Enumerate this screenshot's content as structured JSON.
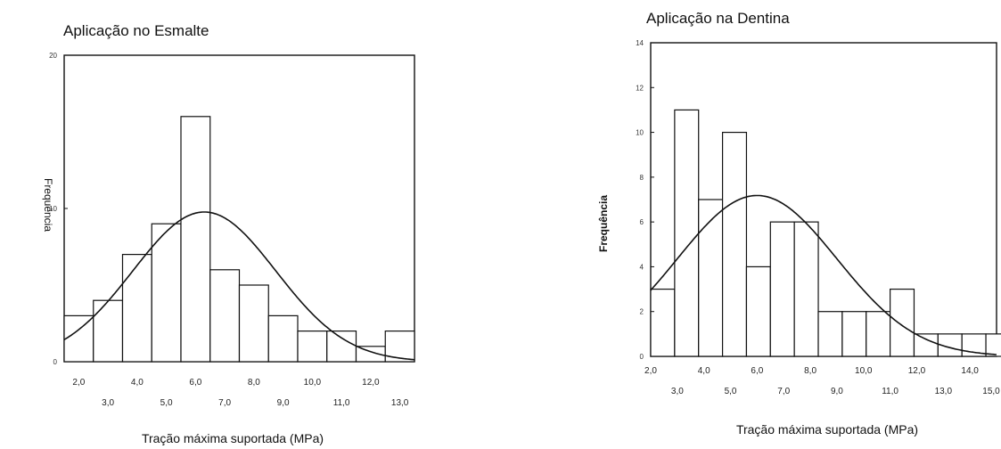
{
  "chart_data": [
    {
      "type": "bar",
      "subtype": "histogram-with-normal-curve",
      "title": "Aplicação no Esmalte",
      "xlabel": "Tração máxima suportada (MPa)",
      "ylabel": "Frequência",
      "x_ticks_top": [
        "2,0",
        "4,0",
        "6,0",
        "8,0",
        "10,0",
        "12,0"
      ],
      "x_ticks_bottom": [
        "3,0",
        "5,0",
        "7,0",
        "9,0",
        "11,0",
        "13,0"
      ],
      "y_ticks": [
        "0",
        "10",
        "20"
      ],
      "xlim": [
        1.5,
        13.5
      ],
      "ylim": [
        0,
        20
      ],
      "bin_width": 1.0,
      "bin_starts": [
        1.5,
        2.5,
        3.5,
        4.5,
        5.5,
        6.5,
        7.5,
        8.5,
        9.5,
        10.5,
        11.5,
        12.5
      ],
      "values": [
        3,
        4,
        7,
        9,
        16,
        6,
        5,
        3,
        2,
        2,
        1,
        2
      ],
      "normal_curve": {
        "mean": 6.3,
        "sd": 2.45,
        "n": 60
      },
      "grid": false,
      "legend": "none"
    },
    {
      "type": "bar",
      "subtype": "histogram-with-normal-curve",
      "title": "Aplicação na Dentina",
      "xlabel": "Tração máxima suportada (MPa)",
      "ylabel": "Frequência",
      "x_ticks_top": [
        "2,0",
        "4,0",
        "6,0",
        "8,0",
        "10,0",
        "12,0",
        "14,0"
      ],
      "x_ticks_bottom": [
        "3,0",
        "5,0",
        "7,0",
        "9,0",
        "11,0",
        "13,0",
        "15,0"
      ],
      "y_ticks": [
        "0",
        "2",
        "4",
        "6",
        "8",
        "10",
        "12",
        "14"
      ],
      "xlim": [
        2.0,
        15.0
      ],
      "ylim": [
        0,
        14
      ],
      "bin_width": 0.9,
      "bin_starts": [
        2.0,
        2.9,
        3.8,
        4.7,
        5.6,
        6.5,
        7.4,
        8.3,
        9.2,
        10.1,
        11.0,
        11.9,
        12.8,
        13.7,
        14.6
      ],
      "values": [
        3,
        11,
        7,
        10,
        4,
        6,
        6,
        2,
        2,
        2,
        3,
        1,
        1,
        1,
        1
      ],
      "normal_curve": {
        "mean": 6.0,
        "sd": 3.0,
        "n": 60
      },
      "grid": false,
      "legend": "none"
    }
  ]
}
